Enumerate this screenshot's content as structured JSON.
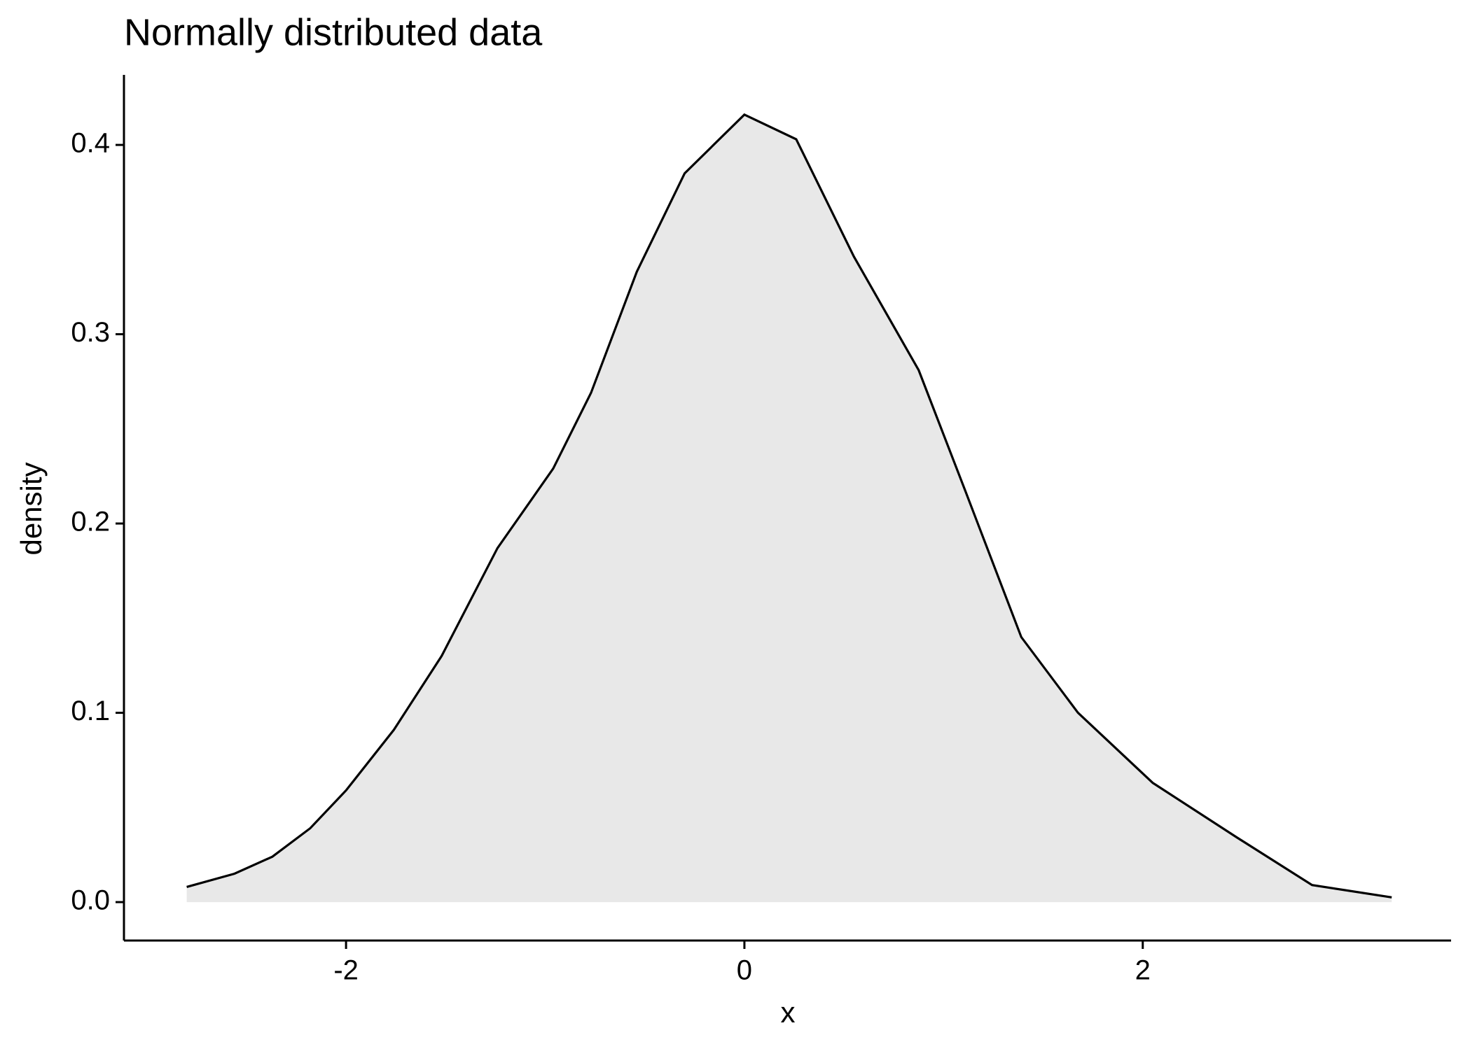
{
  "chart_data": {
    "type": "area",
    "title": "Normally distributed data",
    "x_label": "x",
    "y_label": "density",
    "x": [
      -2.8,
      -2.56,
      -2.37,
      -2.18,
      -2.0,
      -1.76,
      -1.52,
      -1.24,
      -0.96,
      -0.77,
      -0.54,
      -0.3,
      0,
      0.26,
      0.55,
      0.875,
      1.11,
      1.39,
      1.675,
      2.05,
      2.475,
      2.85,
      3.25
    ],
    "values": [
      0.008,
      0.015,
      0.024,
      0.039,
      0.059,
      0.091,
      0.13,
      0.187,
      0.229,
      0.269,
      0.333,
      0.385,
      0.416,
      0.403,
      0.341,
      0.281,
      0.217,
      0.14,
      0.1,
      0.063,
      0.034,
      0.009,
      0.0025
    ],
    "color": "#000000",
    "fill": "#e8e8e8",
    "xlim": [
      -3.115,
      3.548
    ],
    "ylim": [
      -0.0203,
      0.437
    ],
    "xticks": [
      -2,
      0,
      2
    ],
    "yticks": [
      {
        "value": 0,
        "label": "0.0"
      },
      {
        "value": 0.1,
        "label": "0.1"
      },
      {
        "value": 0.2,
        "label": "0.2"
      },
      {
        "value": 0.3,
        "label": "0.3"
      },
      {
        "value": 0.4,
        "label": "0.4"
      }
    ],
    "grid": false
  }
}
